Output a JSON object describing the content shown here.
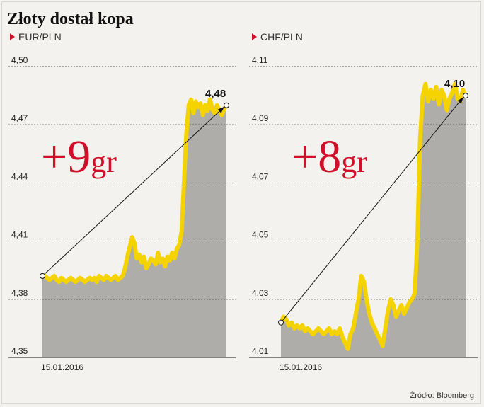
{
  "title": "Złoty dostał kopa",
  "source": "Źródło: Bloomberg",
  "colors": {
    "accent": "#d0102a",
    "line": "#f5d300",
    "area": "#aeadaa",
    "grid": "#222222"
  },
  "chart_data": [
    {
      "type": "area",
      "title": "EUR/PLN",
      "ylim": [
        4.35,
        4.5
      ],
      "yticks": [
        "4,50",
        "4,47",
        "4,44",
        "4,41",
        "4,38",
        "4,35"
      ],
      "ytick_values": [
        4.5,
        4.47,
        4.44,
        4.41,
        4.38,
        4.35
      ],
      "start_label": "15.01.2016",
      "end_label": "4,48",
      "change_label": "+9",
      "change_unit": "gr",
      "series": [
        {
          "values": [
            4.392,
            4.392,
            4.391,
            4.39,
            4.391,
            4.392,
            4.39,
            4.389,
            4.391,
            4.39,
            4.389,
            4.39,
            4.391,
            4.39,
            4.389,
            4.39,
            4.391,
            4.39,
            4.389,
            4.39,
            4.391,
            4.39,
            4.391,
            4.389,
            4.392,
            4.391,
            4.39,
            4.392,
            4.391,
            4.39,
            4.391,
            4.392,
            4.39,
            4.391,
            4.392,
            4.396,
            4.402,
            4.407,
            4.412,
            4.409,
            4.401,
            4.403,
            4.399,
            4.402,
            4.396,
            4.398,
            4.401,
            4.4,
            4.398,
            4.404,
            4.399,
            4.401,
            4.397,
            4.402,
            4.4,
            4.404,
            4.401,
            4.406,
            4.408,
            4.415,
            4.44,
            4.465,
            4.48,
            4.483,
            4.476,
            4.482,
            4.479,
            4.481,
            4.475,
            4.48,
            4.477,
            4.483,
            4.478,
            4.476,
            4.48,
            4.477,
            4.475,
            4.478,
            4.48
          ]
        }
      ]
    },
    {
      "type": "area",
      "title": "CHF/PLN",
      "ylim": [
        4.01,
        4.11
      ],
      "yticks": [
        "4,11",
        "4,09",
        "4,07",
        "4,05",
        "4,03",
        "4,01"
      ],
      "ytick_values": [
        4.11,
        4.09,
        4.07,
        4.05,
        4.03,
        4.01
      ],
      "start_label": "15.01.2016",
      "end_label": "4,10",
      "change_label": "+8",
      "change_unit": "gr",
      "series": [
        {
          "values": [
            4.022,
            4.024,
            4.023,
            4.021,
            4.022,
            4.02,
            4.021,
            4.02,
            4.021,
            4.019,
            4.02,
            4.019,
            4.018,
            4.019,
            4.02,
            4.019,
            4.018,
            4.019,
            4.02,
            4.018,
            4.019,
            4.018,
            4.02,
            4.017,
            4.015,
            4.013,
            4.018,
            4.02,
            4.025,
            4.03,
            4.038,
            4.036,
            4.03,
            4.025,
            4.022,
            4.02,
            4.018,
            4.016,
            4.014,
            4.02,
            4.026,
            4.03,
            4.028,
            4.024,
            4.026,
            4.028,
            4.025,
            4.027,
            4.029,
            4.03,
            4.032,
            4.05,
            4.085,
            4.1,
            4.104,
            4.098,
            4.102,
            4.099,
            4.103,
            4.097,
            4.102,
            4.1,
            4.095,
            4.099,
            4.101,
            4.104,
            4.099,
            4.098,
            4.102,
            4.1
          ]
        }
      ]
    }
  ]
}
